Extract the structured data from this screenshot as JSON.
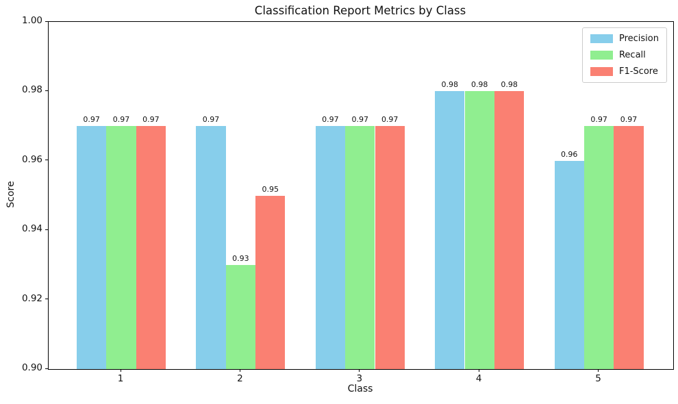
{
  "chart_data": {
    "type": "bar",
    "title": "Classification Report Metrics by Class",
    "xlabel": "Class",
    "ylabel": "Score",
    "categories": [
      "1",
      "2",
      "3",
      "4",
      "5"
    ],
    "series": [
      {
        "name": "Precision",
        "color": "#87CEEB",
        "values": [
          0.97,
          0.97,
          0.97,
          0.98,
          0.96
        ]
      },
      {
        "name": "Recall",
        "color": "#90EE90",
        "values": [
          0.97,
          0.93,
          0.97,
          0.98,
          0.97
        ]
      },
      {
        "name": "F1-Score",
        "color": "#FA8072",
        "values": [
          0.97,
          0.95,
          0.97,
          0.98,
          0.97
        ]
      }
    ],
    "ylim": [
      0.9,
      1.0
    ],
    "yticks": [
      0.9,
      0.92,
      0.94,
      0.96,
      0.98,
      1.0
    ],
    "value_label_decimals": 2,
    "bar_labels_shown": true,
    "grid": false,
    "legend_position": "upper right",
    "legend_labels": [
      "Precision",
      "Recall",
      "F1-Score"
    ]
  },
  "colors": {
    "background": "#ffffff",
    "spine": "#000000",
    "text": "#111111",
    "legend_border": "#cccccc"
  }
}
